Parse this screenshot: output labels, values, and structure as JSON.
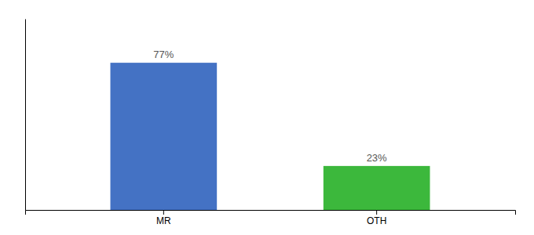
{
  "chart_data": {
    "type": "bar",
    "categories": [
      "MR",
      "OTH"
    ],
    "values": [
      77,
      23
    ],
    "value_labels": [
      "77%",
      "23%"
    ],
    "colors": [
      "#4472c4",
      "#3cb83c"
    ],
    "ylim": [
      0,
      100
    ],
    "data_labels": true,
    "tick_labels": "x"
  }
}
